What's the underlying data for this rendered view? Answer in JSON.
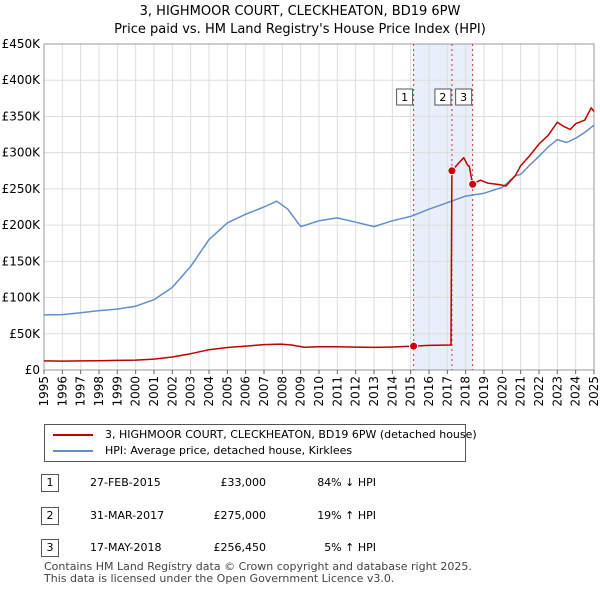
{
  "title": "3, HIGHMOOR COURT, CLECKHEATON, BD19 6PW",
  "subtitle": "Price paid vs. HM Land Registry's House Price Index (HPI)",
  "chart_data": {
    "type": "line",
    "xlim": [
      1995,
      2025
    ],
    "ylim": [
      0,
      450000
    ],
    "x_ticks": [
      "1995",
      "1996",
      "1997",
      "1998",
      "1999",
      "2000",
      "2001",
      "2002",
      "2003",
      "2004",
      "2005",
      "2006",
      "2007",
      "2008",
      "2009",
      "2010",
      "2011",
      "2012",
      "2013",
      "2014",
      "2015",
      "2016",
      "2017",
      "2018",
      "2019",
      "2020",
      "2021",
      "2022",
      "2023",
      "2024",
      "2025"
    ],
    "y_ticks": [
      {
        "value": 0,
        "label": "£0"
      },
      {
        "value": 50000,
        "label": "£50K"
      },
      {
        "value": 100000,
        "label": "£100K"
      },
      {
        "value": 150000,
        "label": "£150K"
      },
      {
        "value": 200000,
        "label": "£200K"
      },
      {
        "value": 250000,
        "label": "£250K"
      },
      {
        "value": 300000,
        "label": "£300K"
      },
      {
        "value": 350000,
        "label": "£350K"
      },
      {
        "value": 400000,
        "label": "£400K"
      },
      {
        "value": 450000,
        "label": "£450K"
      }
    ],
    "shaded_region": [
      2015.16,
      2018.38
    ],
    "series": [
      {
        "name": "3, HIGHMOOR COURT, CLECKHEATON, BD19 6PW (detached house)",
        "color": "#c00000",
        "points": [
          [
            1995,
            12500
          ],
          [
            1996,
            12300
          ],
          [
            1997,
            12600
          ],
          [
            1998,
            12900
          ],
          [
            1999,
            13200
          ],
          [
            2000,
            13700
          ],
          [
            2001,
            15000
          ],
          [
            2002,
            18000
          ],
          [
            2003,
            22500
          ],
          [
            2004,
            28000
          ],
          [
            2005,
            31000
          ],
          [
            2006,
            33000
          ],
          [
            2007,
            35000
          ],
          [
            2007.9,
            35800
          ],
          [
            2008.5,
            34500
          ],
          [
            2009.2,
            31500
          ],
          [
            2010,
            32200
          ],
          [
            2011,
            32000
          ],
          [
            2012,
            31600
          ],
          [
            2013,
            31200
          ],
          [
            2014,
            31700
          ],
          [
            2015.16,
            33000
          ],
          [
            2016,
            34000
          ],
          [
            2017.2,
            34500
          ],
          [
            2017.25,
            275000
          ],
          [
            2017.6,
            285000
          ],
          [
            2017.9,
            293000
          ],
          [
            2018.1,
            283000
          ],
          [
            2018.2,
            281000
          ],
          [
            2018.38,
            256450
          ],
          [
            2018.8,
            262000
          ],
          [
            2019.2,
            258000
          ],
          [
            2019.8,
            256000
          ],
          [
            2020.2,
            254000
          ],
          [
            2020.7,
            268000
          ],
          [
            2021,
            282000
          ],
          [
            2021.5,
            296000
          ],
          [
            2022,
            312000
          ],
          [
            2022.5,
            324000
          ],
          [
            2023,
            342000
          ],
          [
            2023.3,
            337000
          ],
          [
            2023.7,
            332000
          ],
          [
            2024,
            340000
          ],
          [
            2024.5,
            345000
          ],
          [
            2024.85,
            362000
          ],
          [
            2025,
            357000
          ]
        ]
      },
      {
        "name": "HPI: Average price, detached house, Kirklees",
        "color": "#6090cc",
        "points": [
          [
            1995,
            76000
          ],
          [
            1996,
            76500
          ],
          [
            1997,
            79000
          ],
          [
            1998,
            82000
          ],
          [
            1999,
            84000
          ],
          [
            2000,
            88000
          ],
          [
            2001,
            97000
          ],
          [
            2002,
            114000
          ],
          [
            2003,
            143000
          ],
          [
            2004,
            180000
          ],
          [
            2005,
            203000
          ],
          [
            2006,
            215000
          ],
          [
            2007,
            225000
          ],
          [
            2007.7,
            233000
          ],
          [
            2008.3,
            222000
          ],
          [
            2009,
            198000
          ],
          [
            2010,
            206000
          ],
          [
            2011,
            210000
          ],
          [
            2012,
            204000
          ],
          [
            2013,
            198000
          ],
          [
            2014,
            206000
          ],
          [
            2015,
            212000
          ],
          [
            2016,
            222000
          ],
          [
            2017,
            231000
          ],
          [
            2018,
            240000
          ],
          [
            2019,
            244000
          ],
          [
            2020,
            252000
          ],
          [
            2020.7,
            268000
          ],
          [
            2021,
            270000
          ],
          [
            2021.5,
            283000
          ],
          [
            2022,
            295000
          ],
          [
            2022.5,
            308000
          ],
          [
            2023,
            318000
          ],
          [
            2023.5,
            314000
          ],
          [
            2024,
            320000
          ],
          [
            2024.5,
            328000
          ],
          [
            2025,
            338000
          ]
        ]
      }
    ],
    "markers": [
      {
        "id": "1",
        "x": 2015.16,
        "y": 33000
      },
      {
        "id": "2",
        "x": 2017.25,
        "y": 275000
      },
      {
        "id": "3",
        "x": 2018.38,
        "y": 256450
      }
    ]
  },
  "legend": {
    "property": "3, HIGHMOOR COURT, CLECKHEATON, BD19 6PW (detached house)",
    "hpi": "HPI: Average price, detached house, Kirklees"
  },
  "sales": [
    {
      "num": "1",
      "date": "27-FEB-2015",
      "price": "£33,000",
      "hpi": "84% ↓ HPI"
    },
    {
      "num": "2",
      "date": "31-MAR-2017",
      "price": "£275,000",
      "hpi": "19% ↑ HPI"
    },
    {
      "num": "3",
      "date": "17-MAY-2018",
      "price": "£256,450",
      "hpi": "5% ↑ HPI"
    }
  ],
  "footer": {
    "line1": "Contains HM Land Registry data © Crown copyright and database right 2025.",
    "line2": "This data is licensed under the Open Government Licence v3.0."
  }
}
